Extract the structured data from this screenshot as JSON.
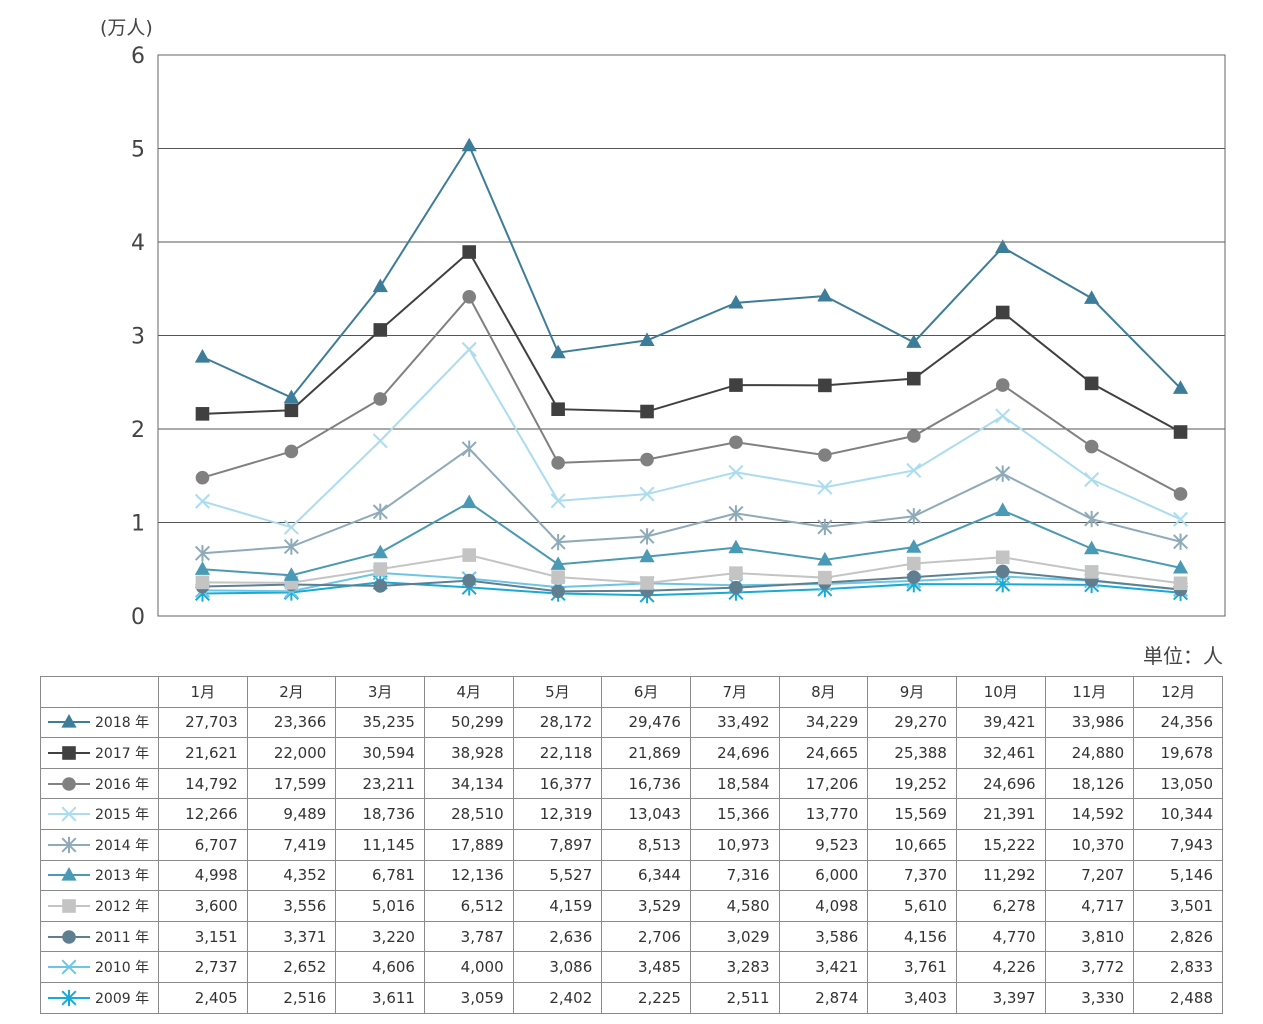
{
  "unit_note": "単位：人",
  "chart_data": {
    "type": "line",
    "yunit_label": "(万人)",
    "ylim": [
      0,
      6
    ],
    "yticks": [
      0,
      1,
      2,
      3,
      4,
      5,
      6
    ],
    "y_scale_divisor": 10000,
    "grid": "horizontal",
    "categories": [
      "1月",
      "2月",
      "3月",
      "4月",
      "5月",
      "6月",
      "7月",
      "8月",
      "9月",
      "10月",
      "11月",
      "12月"
    ],
    "series": [
      {
        "name": "2018 年",
        "color": "#3d7d99",
        "marker": "triangle",
        "values": [
          27703,
          23366,
          35235,
          50299,
          28172,
          29476,
          33492,
          34229,
          29270,
          39421,
          33986,
          24356
        ]
      },
      {
        "name": "2017 年",
        "color": "#404040",
        "marker": "square",
        "values": [
          21621,
          22000,
          30594,
          38928,
          22118,
          21869,
          24696,
          24665,
          25388,
          32461,
          24880,
          19678
        ]
      },
      {
        "name": "2016 年",
        "color": "#808080",
        "marker": "circle",
        "values": [
          14792,
          17599,
          23211,
          34134,
          16377,
          16736,
          18584,
          17206,
          19252,
          24696,
          18126,
          13050
        ]
      },
      {
        "name": "2015 年",
        "color": "#abdcef",
        "marker": "x",
        "values": [
          12266,
          9489,
          18736,
          28510,
          12319,
          13043,
          15366,
          13770,
          15569,
          21391,
          14592,
          10344
        ]
      },
      {
        "name": "2014 年",
        "color": "#8faab8",
        "marker": "asterisk",
        "values": [
          6707,
          7419,
          11145,
          17889,
          7897,
          8513,
          10973,
          9523,
          10665,
          15222,
          10370,
          7943
        ]
      },
      {
        "name": "2013 年",
        "color": "#4a9ab5",
        "marker": "triangle",
        "values": [
          4998,
          4352,
          6781,
          12136,
          5527,
          6344,
          7316,
          6000,
          7370,
          11292,
          7207,
          5146
        ]
      },
      {
        "name": "2012 年",
        "color": "#c4c4c4",
        "marker": "square",
        "values": [
          3600,
          3556,
          5016,
          6512,
          4159,
          3529,
          4580,
          4098,
          5610,
          6278,
          4717,
          3501
        ]
      },
      {
        "name": "2011 年",
        "color": "#5f7f91",
        "marker": "circle",
        "values": [
          3151,
          3371,
          3220,
          3787,
          2636,
          2706,
          3029,
          3586,
          4156,
          4770,
          3810,
          2826
        ]
      },
      {
        "name": "2010 年",
        "color": "#6cc5e2",
        "marker": "x",
        "values": [
          2737,
          2652,
          4606,
          4000,
          3086,
          3485,
          3283,
          3421,
          3761,
          4226,
          3772,
          2833
        ]
      },
      {
        "name": "2009 年",
        "color": "#19a9d6",
        "marker": "asterisk",
        "values": [
          2405,
          2516,
          3611,
          3059,
          2402,
          2225,
          2511,
          2874,
          3403,
          3397,
          3330,
          2488
        ]
      }
    ]
  },
  "table": {
    "months": [
      "1月",
      "2月",
      "3月",
      "4月",
      "5月",
      "6月",
      "7月",
      "8月",
      "9月",
      "10月",
      "11月",
      "12月"
    ],
    "rows": [
      {
        "label": "2018 年",
        "cells": [
          "27,703",
          "23,366",
          "35,235",
          "50,299",
          "28,172",
          "29,476",
          "33,492",
          "34,229",
          "29,270",
          "39,421",
          "33,986",
          "24,356"
        ]
      },
      {
        "label": "2017 年",
        "cells": [
          "21,621",
          "22,000",
          "30,594",
          "38,928",
          "22,118",
          "21,869",
          "24,696",
          "24,665",
          "25,388",
          "32,461",
          "24,880",
          "19,678"
        ]
      },
      {
        "label": "2016 年",
        "cells": [
          "14,792",
          "17,599",
          "23,211",
          "34,134",
          "16,377",
          "16,736",
          "18,584",
          "17,206",
          "19,252",
          "24,696",
          "18,126",
          "13,050"
        ]
      },
      {
        "label": "2015 年",
        "cells": [
          "12,266",
          "9,489",
          "18,736",
          "28,510",
          "12,319",
          "13,043",
          "15,366",
          "13,770",
          "15,569",
          "21,391",
          "14,592",
          "10,344"
        ]
      },
      {
        "label": "2014 年",
        "cells": [
          "6,707",
          "7,419",
          "11,145",
          "17,889",
          "7,897",
          "8,513",
          "10,973",
          "9,523",
          "10,665",
          "15,222",
          "10,370",
          "7,943"
        ]
      },
      {
        "label": "2013 年",
        "cells": [
          "4,998",
          "4,352",
          "6,781",
          "12,136",
          "5,527",
          "6,344",
          "7,316",
          "6,000",
          "7,370",
          "11,292",
          "7,207",
          "5,146"
        ]
      },
      {
        "label": "2012 年",
        "cells": [
          "3,600",
          "3,556",
          "5,016",
          "6,512",
          "4,159",
          "3,529",
          "4,580",
          "4,098",
          "5,610",
          "6,278",
          "4,717",
          "3,501"
        ]
      },
      {
        "label": "2011 年",
        "cells": [
          "3,151",
          "3,371",
          "3,220",
          "3,787",
          "2,636",
          "2,706",
          "3,029",
          "3,586",
          "4,156",
          "4,770",
          "3,810",
          "2,826"
        ]
      },
      {
        "label": "2010 年",
        "cells": [
          "2,737",
          "2,652",
          "4,606",
          "4,000",
          "3,086",
          "3,485",
          "3,283",
          "3,421",
          "3,761",
          "4,226",
          "3,772",
          "2,833"
        ]
      },
      {
        "label": "2009 年",
        "cells": [
          "2,405",
          "2,516",
          "3,611",
          "3,059",
          "2,402",
          "2,225",
          "2,511",
          "2,874",
          "3,403",
          "3,397",
          "3,330",
          "2,488"
        ]
      }
    ]
  }
}
